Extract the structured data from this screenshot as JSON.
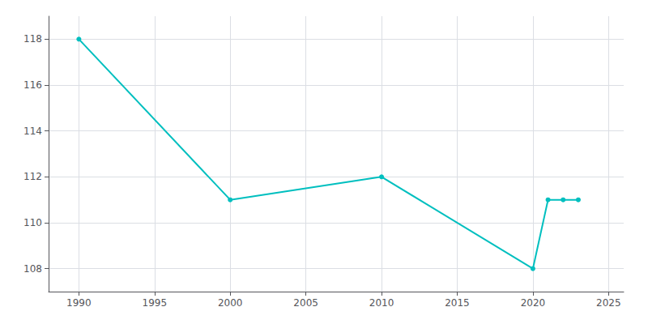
{
  "chart_data": {
    "type": "line",
    "x": [
      1990,
      2000,
      2010,
      2020,
      2021,
      2022,
      2023
    ],
    "values": [
      118,
      111,
      112,
      108,
      111,
      111,
      111
    ],
    "color": "#00BFBF",
    "marker": "circle",
    "xlim": [
      1988,
      2026
    ],
    "ylim": [
      107,
      119
    ],
    "xticks": [
      1990,
      1995,
      2000,
      2005,
      2010,
      2015,
      2020,
      2025
    ],
    "yticks": [
      108,
      110,
      112,
      114,
      116,
      118
    ],
    "grid": true
  }
}
